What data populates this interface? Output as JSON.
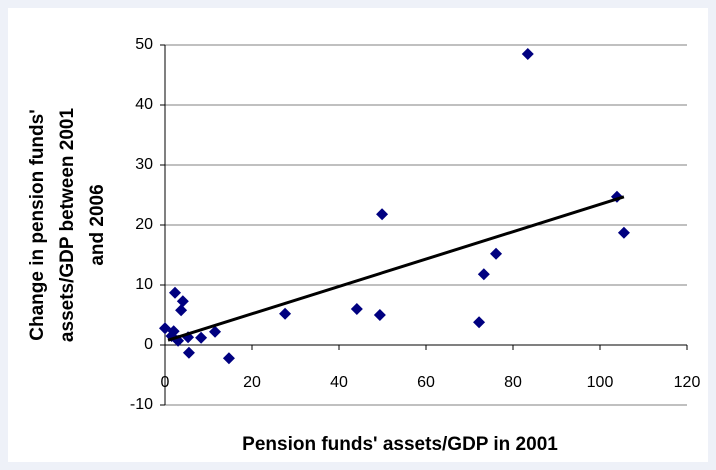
{
  "chart_data": {
    "type": "scatter",
    "xlabel": "Pension funds' assets/GDP in 2001",
    "ylabel": [
      "Change in pension funds'",
      "assets/GDP between 2001",
      "and 2006"
    ],
    "series": [
      {
        "color": "#000080",
        "x": [
          0,
          1.5,
          2,
          2.3,
          3,
          3.7,
          4.1,
          5.3,
          5.5,
          8.3,
          11.5,
          14.7,
          27.6,
          44.1,
          49.4,
          49.9,
          72.2,
          73.3,
          76.1,
          83.4,
          103.9,
          105.5
        ],
        "values": [
          2.8,
          1.5,
          2.3,
          8.7,
          0.7,
          5.8,
          7.3,
          1.3,
          -1.3,
          1.2,
          2.2,
          -2.2,
          5.2,
          6,
          5,
          21.8,
          3.8,
          11.8,
          15.2,
          48.5,
          24.7,
          18.7
        ]
      }
    ],
    "trendline": {
      "x": [
        0.7,
        105.5
      ],
      "values": [
        0.8,
        24.7
      ],
      "color": "#000000"
    },
    "xlim": [
      0,
      120
    ],
    "xticks": [
      0,
      20,
      40,
      60,
      80,
      100,
      120
    ],
    "ylim": [
      -10,
      50
    ],
    "yticks": [
      -10,
      0,
      10,
      20,
      30,
      40,
      50
    ],
    "grid": true
  }
}
